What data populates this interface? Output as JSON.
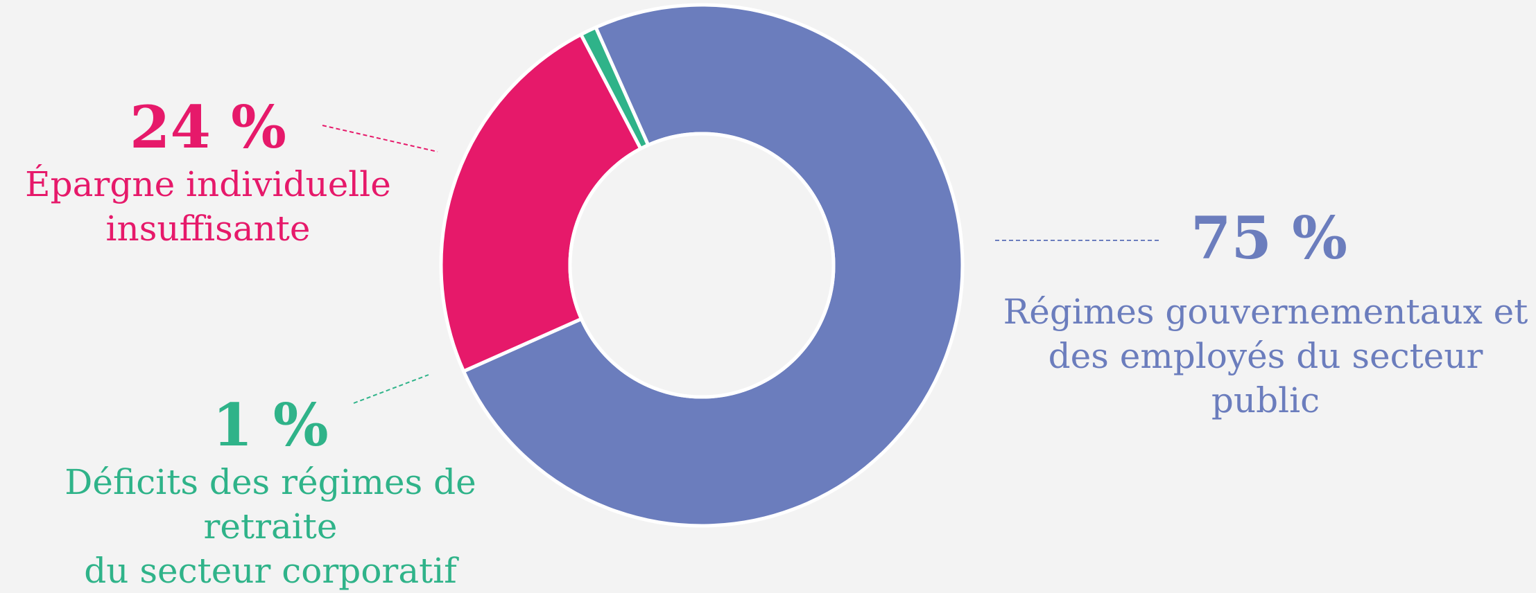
{
  "chart_data": {
    "type": "pie",
    "donut": true,
    "categories": [
      "Régimes gouvernementaux et des employés du secteur public",
      "Épargne individuelle insuffisante",
      "Déficits des régimes de retraite du secteur corporatif"
    ],
    "values": [
      75,
      24,
      1
    ],
    "value_labels": [
      "75 %",
      "24 %",
      "1 %"
    ],
    "colors": [
      "#6b7dbd",
      "#e6196a",
      "#2fb389"
    ],
    "legend": "none"
  },
  "labels": {
    "public": {
      "pct": "75 %",
      "line1": "Régimes gouvernementaux et",
      "line2": "des employés du secteur public"
    },
    "individual": {
      "pct": "24 %",
      "line1": "Épargne individuelle",
      "line2": "insuffisante"
    },
    "corporate": {
      "pct": "1 %",
      "line1": "Déficits des régimes de retraite",
      "line2": "du secteur corporatif"
    }
  }
}
